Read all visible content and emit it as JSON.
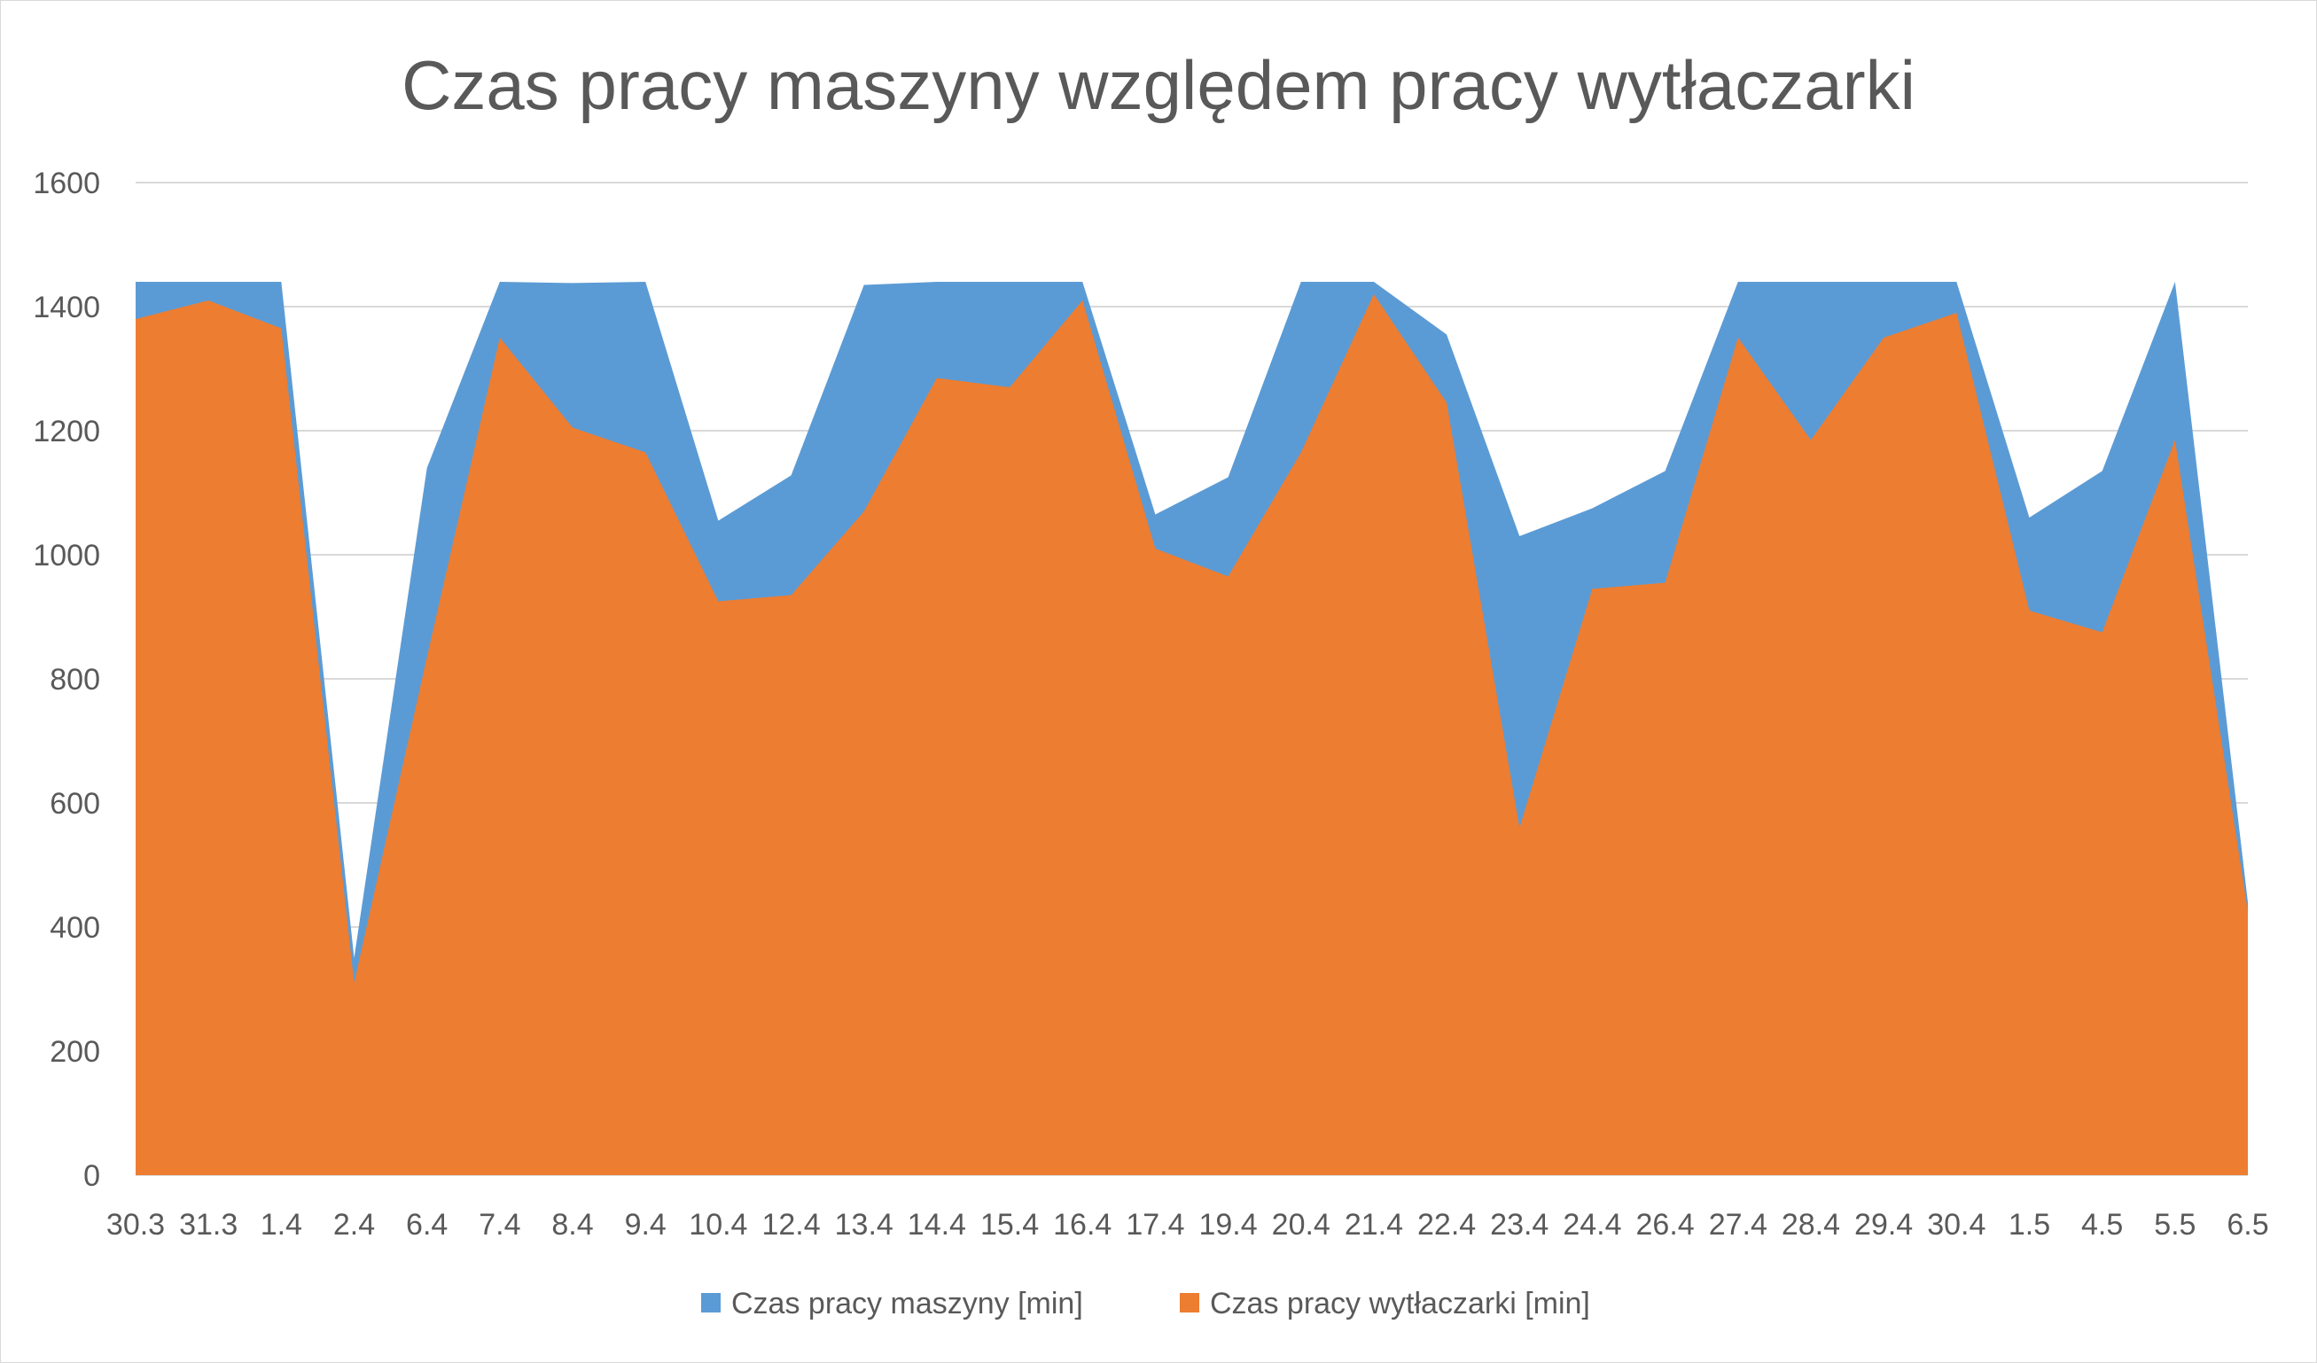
{
  "chart_data": {
    "type": "area",
    "title": "Czas pracy maszyny względem pracy wytłaczarki",
    "xlabel": "",
    "ylabel": "",
    "ylim": [
      0,
      1600
    ],
    "yticks": [
      0,
      200,
      400,
      600,
      800,
      1000,
      1200,
      1400,
      1600
    ],
    "grid": true,
    "legend_position": "bottom",
    "categories": [
      "30.3",
      "31.3",
      "1.4",
      "2.4",
      "6.4",
      "7.4",
      "8.4",
      "9.4",
      "10.4",
      "12.4",
      "13.4",
      "14.4",
      "15.4",
      "16.4",
      "17.4",
      "19.4",
      "20.4",
      "21.4",
      "22.4",
      "23.4",
      "24.4",
      "26.4",
      "27.4",
      "28.4",
      "29.4",
      "30.4",
      "1.5",
      "4.5",
      "5.5",
      "6.5"
    ],
    "series": [
      {
        "name": "Czas pracy maszyny [min]",
        "color": "#5b9bd5",
        "values": [
          1440,
          1440,
          1440,
          350,
          1140,
          1440,
          1438,
          1440,
          1055,
          1128,
          1435,
          1440,
          1440,
          1440,
          1065,
          1125,
          1440,
          1440,
          1355,
          1030,
          1075,
          1135,
          1440,
          1440,
          1440,
          1440,
          1060,
          1135,
          1440,
          440
        ]
      },
      {
        "name": "Czas pracy wytłaczarki [min]",
        "color": "#ed7d31",
        "values": [
          1380,
          1410,
          1365,
          310,
          835,
          1350,
          1205,
          1165,
          925,
          935,
          1070,
          1285,
          1270,
          1410,
          1010,
          965,
          1165,
          1420,
          1245,
          560,
          945,
          955,
          1350,
          1185,
          1350,
          1390,
          910,
          875,
          1185,
          425
        ]
      }
    ]
  },
  "style": {
    "background": "#ffffff",
    "grid_color": "#d9d9d9",
    "text_color": "#595959"
  }
}
